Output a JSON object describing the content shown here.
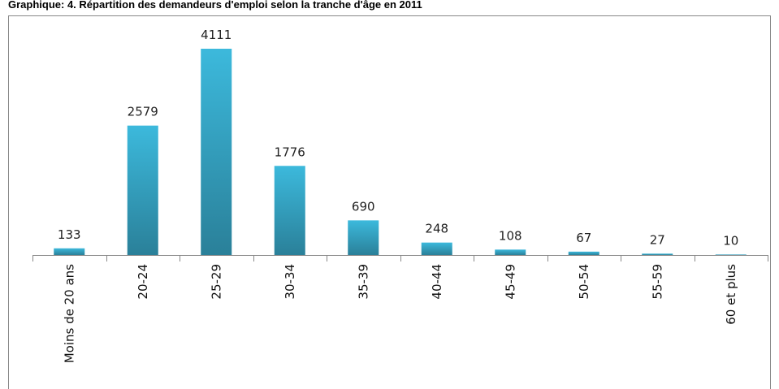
{
  "chart_data": {
    "type": "bar",
    "title": "Graphique: 4. Répartition des demandeurs d'emploi selon la tranche d'âge en 2011",
    "categories": [
      "Moins de 20 ans",
      "20-24",
      "25-29",
      "30-34",
      "35-39",
      "40-44",
      "45-49",
      "50-54",
      "55-59",
      "60 et plus"
    ],
    "values": [
      133,
      2579,
      4111,
      1776,
      690,
      248,
      108,
      67,
      27,
      10
    ],
    "color": "#33afd0"
  }
}
